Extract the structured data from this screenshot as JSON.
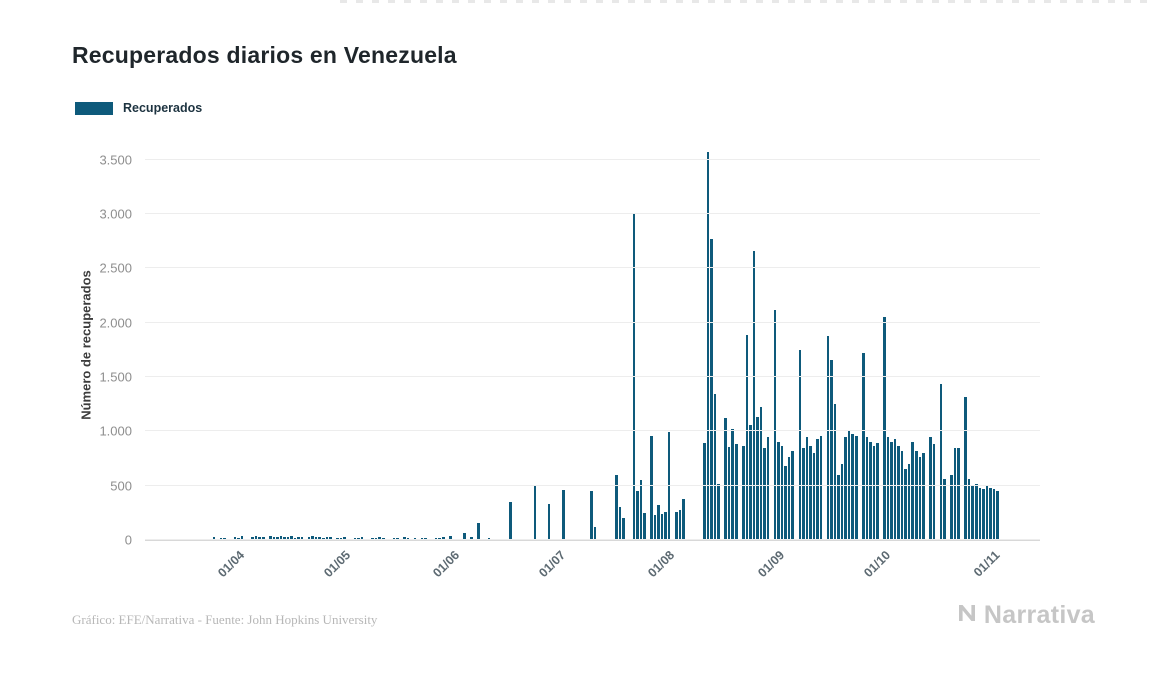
{
  "title": "Recuperados diarios en Venezuela",
  "legend": {
    "label": "Recuperados"
  },
  "footer": {
    "credit": "Gráfico: EFE/Narrativa - Fuente: John Hopkins University",
    "brand": "Narrativa"
  },
  "chart_data": {
    "type": "bar",
    "title": "Recuperados diarios en Venezuela",
    "xlabel": "",
    "ylabel": "Número de recuperados",
    "series_name": "Recuperados",
    "bar_color": "#0e5a7b",
    "grid": true,
    "legend_position": "top-left",
    "ylim": [
      0,
      3500
    ],
    "yticks": [
      "0",
      "500",
      "1.000",
      "1.500",
      "2.000",
      "2.500",
      "3.000",
      "3.500"
    ],
    "ytick_values": [
      0,
      500,
      1000,
      1500,
      2000,
      2500,
      3000,
      3500
    ],
    "x_tick_labels": [
      "01/04",
      "01/05",
      "01/06",
      "01/07",
      "01/08",
      "01/09",
      "01/10",
      "01/11"
    ],
    "x_tick_day_index": [
      16,
      46,
      77,
      107,
      138,
      169,
      199,
      230
    ],
    "values": [
      0,
      0,
      0,
      0,
      0,
      0,
      0,
      0,
      0,
      25,
      0,
      15,
      20,
      0,
      10,
      25,
      20,
      35,
      10,
      0,
      25,
      40,
      30,
      25,
      0,
      35,
      30,
      25,
      40,
      30,
      25,
      35,
      20,
      25,
      30,
      0,
      25,
      35,
      30,
      25,
      20,
      30,
      25,
      0,
      20,
      15,
      25,
      10,
      0,
      20,
      15,
      25,
      10,
      0,
      15,
      20,
      25,
      15,
      10,
      0,
      20,
      15,
      10,
      25,
      20,
      0,
      15,
      10,
      20,
      15,
      0,
      10,
      20,
      15,
      25,
      10,
      40,
      0,
      10,
      0,
      60,
      0,
      25,
      0,
      160,
      0,
      0,
      15,
      0,
      0,
      0,
      0,
      0,
      350,
      0,
      0,
      0,
      0,
      0,
      0,
      500,
      0,
      0,
      0,
      330,
      0,
      0,
      0,
      460,
      0,
      0,
      0,
      0,
      0,
      0,
      0,
      450,
      120,
      0,
      0,
      0,
      0,
      0,
      600,
      300,
      200,
      0,
      0,
      3010,
      450,
      550,
      250,
      0,
      960,
      230,
      320,
      240,
      260,
      990,
      0,
      260,
      280,
      380,
      0,
      0,
      0,
      0,
      0,
      890,
      3570,
      2770,
      1340,
      520,
      0,
      1120,
      860,
      1020,
      880,
      0,
      870,
      1890,
      1060,
      2660,
      1130,
      1220,
      850,
      950,
      0,
      2120,
      900,
      870,
      680,
      760,
      820,
      0,
      1750,
      850,
      950,
      870,
      800,
      930,
      960,
      0,
      1880,
      1660,
      1250,
      600,
      700,
      950,
      1000,
      980,
      960,
      0,
      1720,
      950,
      900,
      870,
      890,
      0,
      2050,
      950,
      900,
      930,
      870,
      820,
      650,
      700,
      900,
      820,
      760,
      800,
      0,
      950,
      880,
      0,
      1440,
      560,
      0,
      600,
      850,
      850,
      0,
      1320,
      560,
      500,
      520,
      480,
      470,
      500,
      480,
      470,
      450
    ]
  }
}
